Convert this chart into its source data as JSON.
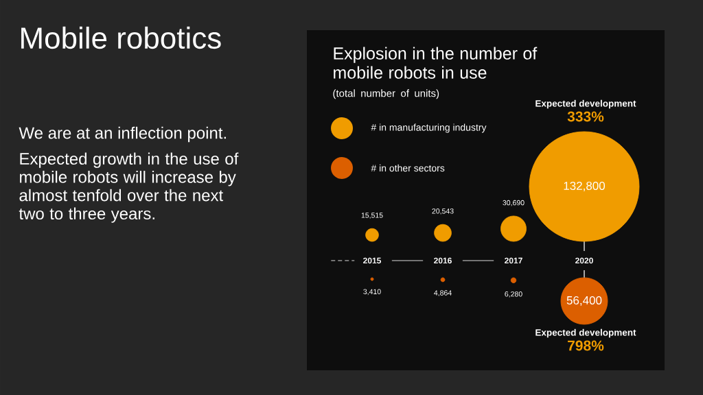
{
  "chart_data": {
    "type": "other",
    "title": "Explosion in the number of mobile robots in use",
    "subtitle": "(total number of units)",
    "categories": [
      "2015",
      "2016",
      "2017",
      "2020"
    ],
    "series": [
      {
        "name": "# in manufacturing industry",
        "color": "#f09c00",
        "values": [
          15515,
          20543,
          30690,
          132800
        ],
        "value_labels": [
          "15,515",
          "20,543",
          "30,690",
          "132,800"
        ]
      },
      {
        "name": "# in other sectors",
        "color": "#dc5f00",
        "values": [
          3410,
          4864,
          6280,
          56400
        ],
        "value_labels": [
          "3,410",
          "4,864",
          "6,280",
          "56,400"
        ]
      }
    ],
    "legend": "top left",
    "annotations": [
      "Mobile robotics",
      "We are at an inflection point.",
      "Expected growth in the use of mobile robots will increase by almost tenfold over the next two to three years.",
      "Expected development",
      "333%",
      "Expected development",
      "798%"
    ]
  }
}
